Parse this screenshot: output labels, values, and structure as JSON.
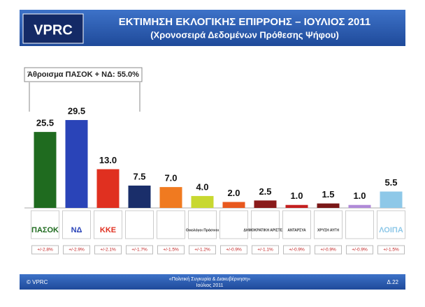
{
  "chart_data": {
    "type": "bar",
    "title": "ΕΚΤΙΜΗΣΗ ΕΚΛΟΓΙΚΗΣ ΕΠΙΡΡΟΗΣ – ΙΟΥΛΙΟΣ 2011",
    "subtitle": "(Χρονοσειρά Δεδομένων Πρόθεσης Ψήφου)",
    "annotation": "Άθροισμα ΠΑΣΟΚ + ΝΔ: 55.0%",
    "categories": [
      "ΠΑΣΟΚ",
      "ΝΔ",
      "ΚΚΕ",
      null,
      null,
      "Οικολόγοι Πράσινοι",
      null,
      "ΔΗΜΟΚΡΑΤΙΚΗ ΑΡΙΣΤΕΡΑ",
      "ΑΝΤΑΡΣΥΑ",
      "ΧΡΥΣΗ ΑΥΓΗ",
      null,
      "ΛΟΙΠΑ"
    ],
    "values": [
      25.5,
      29.5,
      13.0,
      7.5,
      7.0,
      4.0,
      2.0,
      2.5,
      1.0,
      1.5,
      1.0,
      5.5
    ],
    "value_labels": [
      "25.5",
      "29.5",
      "13.0",
      "7.5",
      "7.0",
      "4.0",
      "2.0",
      "2.5",
      "1.0",
      "1.5",
      "1.0",
      "5.5"
    ],
    "colors": [
      "#1f6b1f",
      "#2a44b8",
      "#e03020",
      "#1a2e6a",
      "#f07a20",
      "#c8d830",
      "#e8581e",
      "#8a1a1a",
      "#c42020",
      "#7a1818",
      "#b08ad8",
      "#8ec8e8"
    ],
    "margins": [
      "+/-2.8%",
      "+/-2.9%",
      "+/-2.1%",
      "+/-1.7%",
      "+/-1.5%",
      "+/-1.2%",
      "+/-0.9%",
      "+/-1.1%",
      "+/-0.9%",
      "+/-0.9%",
      "+/-0.9%",
      "+/-1.5%"
    ],
    "logo": "VPRC",
    "footer_left": "© VPRC",
    "footer_center": "«Πολιτική Συγκυρία & Διακυβέρνηση»",
    "footer_date": "Ιούλιος 2011",
    "footer_right": "Δ.22"
  }
}
